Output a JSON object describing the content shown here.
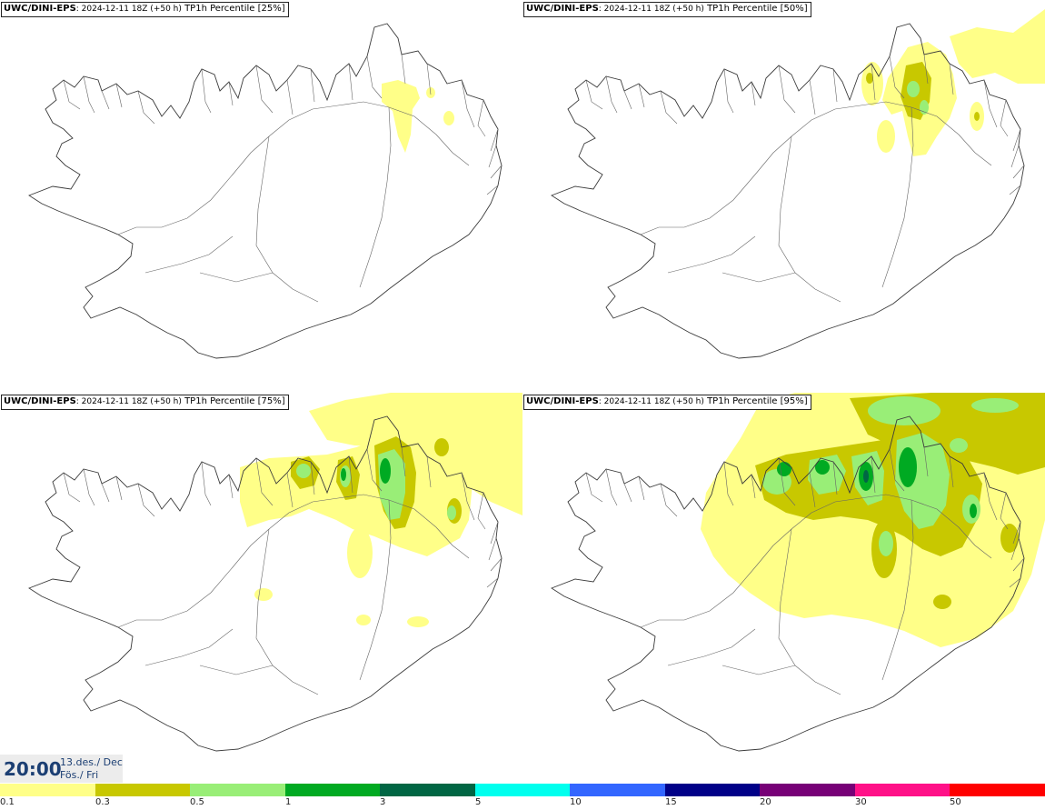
{
  "panels": [
    {
      "model": "UWC/DINI-EPS",
      "run": ": 2024-12-11 18Z (+50 h)",
      "variable": " TP1h Percentile ",
      "percentile": "[25%]"
    },
    {
      "model": "UWC/DINI-EPS",
      "run": ": 2024-12-11 18Z (+50 h)",
      "variable": " TP1h Percentile ",
      "percentile": "[50%]"
    },
    {
      "model": "UWC/DINI-EPS",
      "run": ": 2024-12-11 18Z (+50 h)",
      "variable": " TP1h Percentile ",
      "percentile": "[75%]"
    },
    {
      "model": "UWC/DINI-EPS",
      "run": ": 2024-12-11 18Z (+50 h)",
      "variable": " TP1h Percentile ",
      "percentile": "[95%]"
    }
  ],
  "valid_time": {
    "time": "20:00",
    "date_line1": "13.des./ Dec",
    "date_line2": "Fös./ Fri"
  },
  "legend": {
    "colors": [
      "#ffff88",
      "#c8c800",
      "#99ee77",
      "#00aa22",
      "#006644",
      "#00ffee",
      "#3366ff",
      "#000088",
      "#770077",
      "#ff1188",
      "#ff0000"
    ],
    "ticks": [
      "0.1",
      "0.3",
      "0.5",
      "1",
      "3",
      "5",
      "10",
      "15",
      "20",
      "30",
      "50"
    ]
  }
}
